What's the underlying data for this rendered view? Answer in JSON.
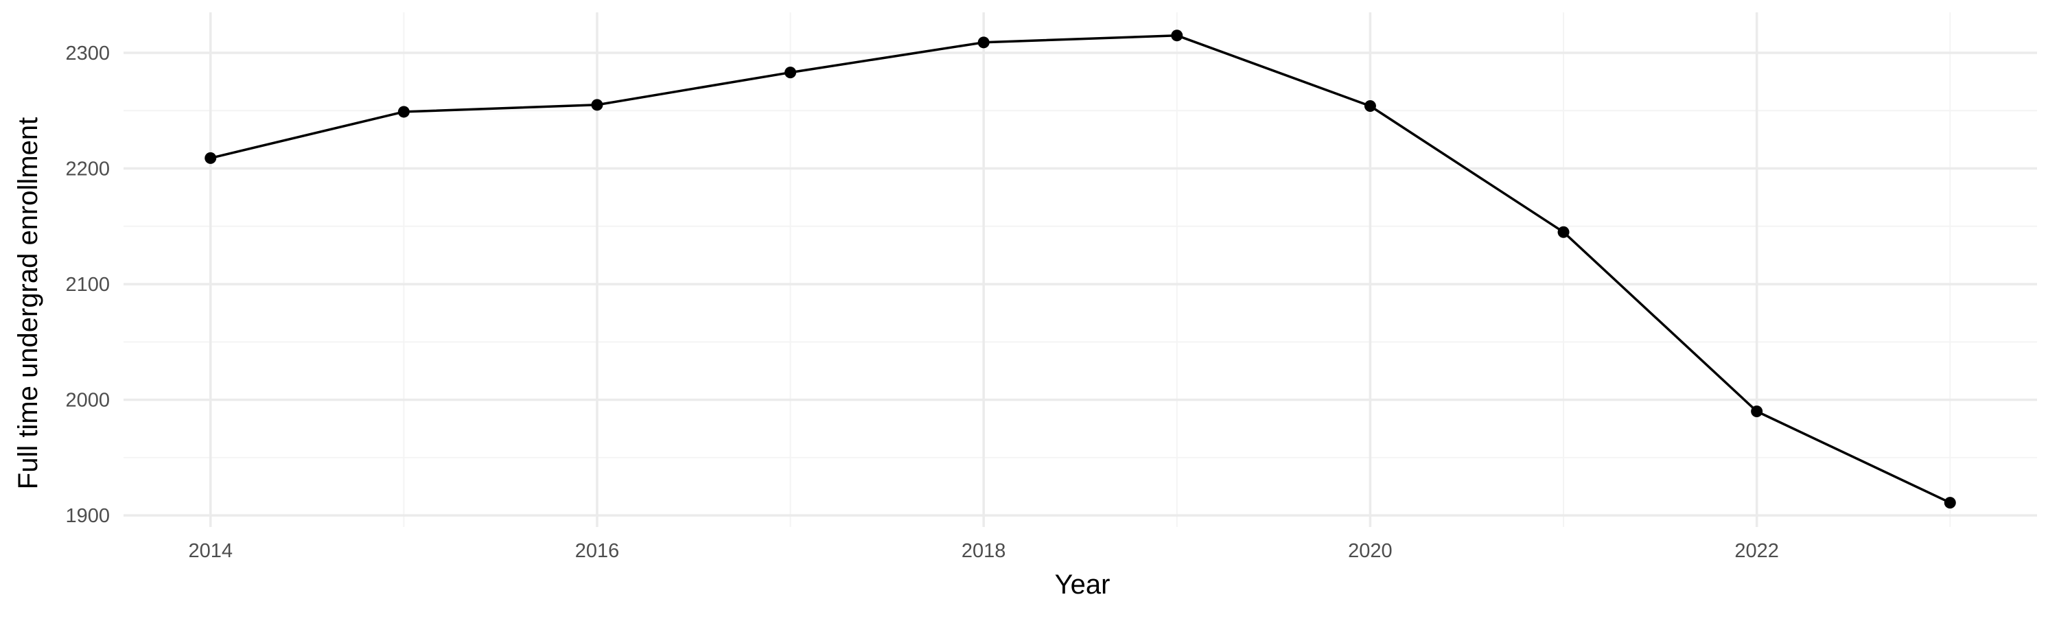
{
  "chart_data": {
    "type": "line",
    "title": "",
    "xlabel": "Year",
    "ylabel": "Full time undergrad enrollment",
    "x": [
      2014,
      2015,
      2016,
      2017,
      2018,
      2019,
      2020,
      2021,
      2022,
      2023
    ],
    "series": [
      {
        "values": [
          2209,
          2249,
          2255,
          2283,
          2309,
          2315,
          2254,
          2145,
          1990,
          1911
        ]
      }
    ],
    "xlim": [
      2013.55,
      2023.45
    ],
    "ylim": [
      1890,
      2335
    ],
    "x_ticks": [
      2014,
      2016,
      2018,
      2020,
      2022
    ],
    "x_tick_labels": [
      "2014",
      "2016",
      "2018",
      "2020",
      "2022"
    ],
    "y_ticks": [
      1900,
      2000,
      2100,
      2200,
      2300
    ],
    "y_tick_labels": [
      "1900",
      "2000",
      "2100",
      "2200",
      "2300"
    ],
    "x_minor_ticks": [
      2015,
      2017,
      2019,
      2021,
      2023
    ],
    "y_minor_ticks": [
      1950,
      2050,
      2150,
      2250
    ],
    "grid": true,
    "legend": "none",
    "colors": {
      "line": "#000000",
      "point": "#000000",
      "grid_major": "#ebebeb",
      "grid_minor": "#f4f4f4",
      "background": "#ffffff"
    }
  }
}
